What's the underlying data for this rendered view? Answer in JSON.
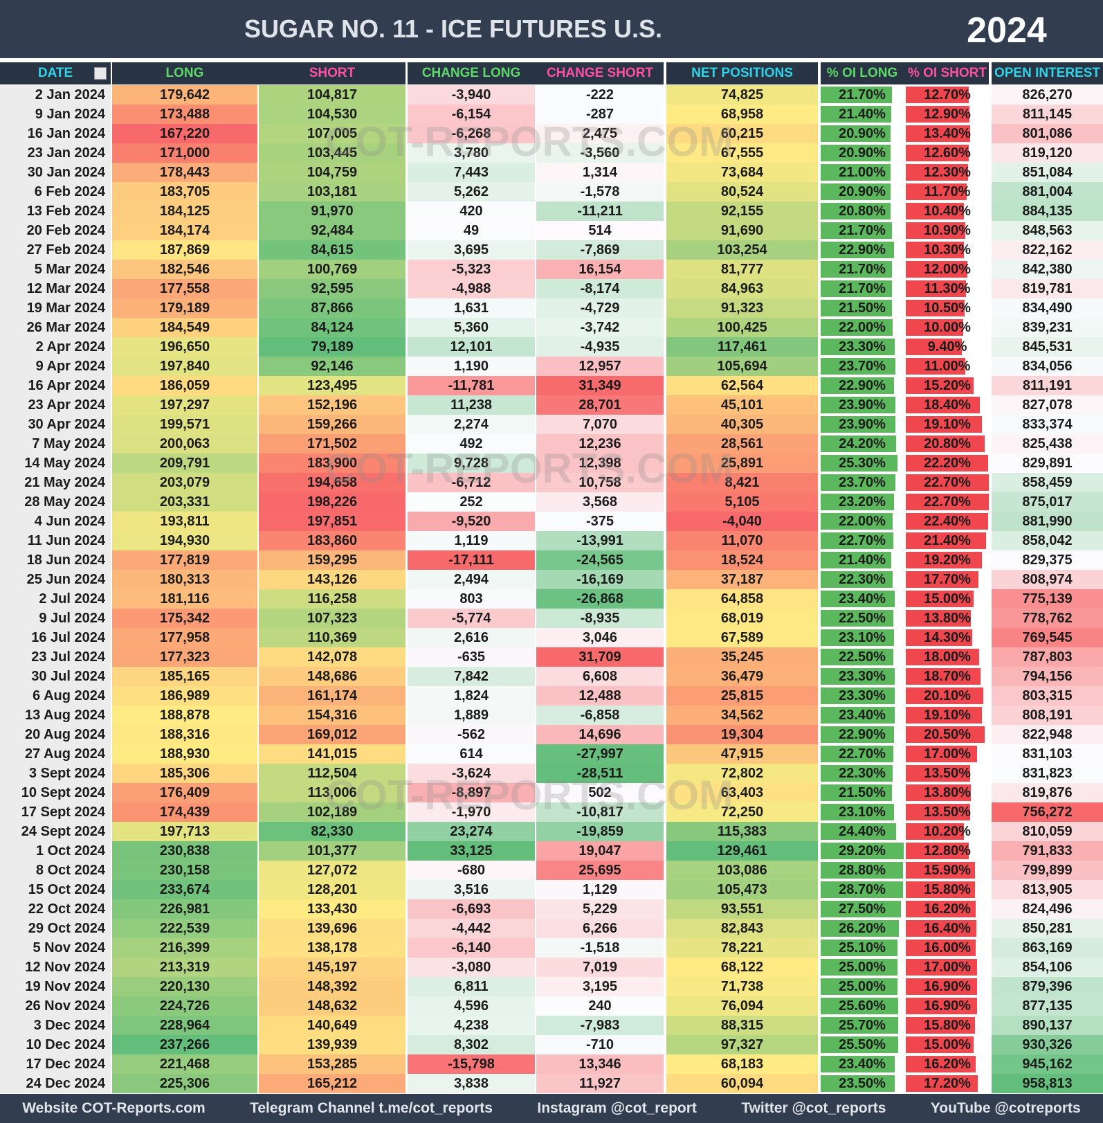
{
  "header": {
    "title": "SUGAR NO. 11 - ICE FUTURES U.S.",
    "year": "2024"
  },
  "table": {
    "columns": [
      "DATE",
      "LONG",
      "SHORT",
      "CHANGE LONG",
      "CHANGE SHORT",
      "NET POSITIONS",
      "% OI LONG",
      "% OI SHORT",
      "OPEN INTEREST"
    ],
    "rows": [
      [
        "2 Jan 2024",
        "179,642",
        "104,817",
        "-3,940",
        "-222",
        "74,825",
        "21.70%",
        "12.70%",
        "826,270"
      ],
      [
        "9 Jan 2024",
        "173,488",
        "104,530",
        "-6,154",
        "-287",
        "68,958",
        "21.40%",
        "12.90%",
        "811,145"
      ],
      [
        "16 Jan 2024",
        "167,220",
        "107,005",
        "-6,268",
        "2,475",
        "60,215",
        "20.90%",
        "13.40%",
        "801,086"
      ],
      [
        "23 Jan 2024",
        "171,000",
        "103,445",
        "3,780",
        "-3,560",
        "67,555",
        "20.90%",
        "12.60%",
        "819,120"
      ],
      [
        "30 Jan 2024",
        "178,443",
        "104,759",
        "7,443",
        "1,314",
        "73,684",
        "21.00%",
        "12.30%",
        "851,084"
      ],
      [
        "6 Feb 2024",
        "183,705",
        "103,181",
        "5,262",
        "-1,578",
        "80,524",
        "20.90%",
        "11.70%",
        "881,004"
      ],
      [
        "13 Feb 2024",
        "184,125",
        "91,970",
        "420",
        "-11,211",
        "92,155",
        "20.80%",
        "10.40%",
        "884,135"
      ],
      [
        "20 Feb 2024",
        "184,174",
        "92,484",
        "49",
        "514",
        "91,690",
        "21.70%",
        "10.90%",
        "848,563"
      ],
      [
        "27 Feb 2024",
        "187,869",
        "84,615",
        "3,695",
        "-7,869",
        "103,254",
        "22.90%",
        "10.30%",
        "822,162"
      ],
      [
        "5 Mar 2024",
        "182,546",
        "100,769",
        "-5,323",
        "16,154",
        "81,777",
        "21.70%",
        "12.00%",
        "842,380"
      ],
      [
        "12 Mar 2024",
        "177,558",
        "92,595",
        "-4,988",
        "-8,174",
        "84,963",
        "21.70%",
        "11.30%",
        "819,781"
      ],
      [
        "19 Mar 2024",
        "179,189",
        "87,866",
        "1,631",
        "-4,729",
        "91,323",
        "21.50%",
        "10.50%",
        "834,490"
      ],
      [
        "26 Mar 2024",
        "184,549",
        "84,124",
        "5,360",
        "-3,742",
        "100,425",
        "22.00%",
        "10.00%",
        "839,231"
      ],
      [
        "2 Apr 2024",
        "196,650",
        "79,189",
        "12,101",
        "-4,935",
        "117,461",
        "23.30%",
        "9.40%",
        "845,531"
      ],
      [
        "9 Apr 2024",
        "197,840",
        "92,146",
        "1,190",
        "12,957",
        "105,694",
        "23.70%",
        "11.00%",
        "834,056"
      ],
      [
        "16 Apr 2024",
        "186,059",
        "123,495",
        "-11,781",
        "31,349",
        "62,564",
        "22.90%",
        "15.20%",
        "811,191"
      ],
      [
        "23 Apr 2024",
        "197,297",
        "152,196",
        "11,238",
        "28,701",
        "45,101",
        "23.90%",
        "18.40%",
        "827,078"
      ],
      [
        "30 Apr 2024",
        "199,571",
        "159,266",
        "2,274",
        "7,070",
        "40,305",
        "23.90%",
        "19.10%",
        "833,374"
      ],
      [
        "7 May 2024",
        "200,063",
        "171,502",
        "492",
        "12,236",
        "28,561",
        "24.20%",
        "20.80%",
        "825,438"
      ],
      [
        "14 May 2024",
        "209,791",
        "183,900",
        "9,728",
        "12,398",
        "25,891",
        "25.30%",
        "22.20%",
        "829,891"
      ],
      [
        "21 May 2024",
        "203,079",
        "194,658",
        "-6,712",
        "10,758",
        "8,421",
        "23.70%",
        "22.70%",
        "858,459"
      ],
      [
        "28 May 2024",
        "203,331",
        "198,226",
        "252",
        "3,568",
        "5,105",
        "23.20%",
        "22.70%",
        "875,017"
      ],
      [
        "4 Jun 2024",
        "193,811",
        "197,851",
        "-9,520",
        "-375",
        "-4,040",
        "22.00%",
        "22.40%",
        "881,990"
      ],
      [
        "11 Jun 2024",
        "194,930",
        "183,860",
        "1,119",
        "-13,991",
        "11,070",
        "22.70%",
        "21.40%",
        "858,042"
      ],
      [
        "18 Jun 2024",
        "177,819",
        "159,295",
        "-17,111",
        "-24,565",
        "18,524",
        "21.40%",
        "19.20%",
        "829,375"
      ],
      [
        "25 Jun 2024",
        "180,313",
        "143,126",
        "2,494",
        "-16,169",
        "37,187",
        "22.30%",
        "17.70%",
        "808,974"
      ],
      [
        "2 Jul 2024",
        "181,116",
        "116,258",
        "803",
        "-26,868",
        "64,858",
        "23.40%",
        "15.00%",
        "775,139"
      ],
      [
        "9 Jul 2024",
        "175,342",
        "107,323",
        "-5,774",
        "-8,935",
        "68,019",
        "22.50%",
        "13.80%",
        "778,762"
      ],
      [
        "16 Jul 2024",
        "177,958",
        "110,369",
        "2,616",
        "3,046",
        "67,589",
        "23.10%",
        "14.30%",
        "769,545"
      ],
      [
        "23 Jul 2024",
        "177,323",
        "142,078",
        "-635",
        "31,709",
        "35,245",
        "22.50%",
        "18.00%",
        "787,803"
      ],
      [
        "30 Jul 2024",
        "185,165",
        "148,686",
        "7,842",
        "6,608",
        "36,479",
        "23.30%",
        "18.70%",
        "794,156"
      ],
      [
        "6 Aug 2024",
        "186,989",
        "161,174",
        "1,824",
        "12,488",
        "25,815",
        "23.30%",
        "20.10%",
        "803,315"
      ],
      [
        "13 Aug 2024",
        "188,878",
        "154,316",
        "1,889",
        "-6,858",
        "34,562",
        "23.40%",
        "19.10%",
        "808,191"
      ],
      [
        "20 Aug 2024",
        "188,316",
        "169,012",
        "-562",
        "14,696",
        "19,304",
        "22.90%",
        "20.50%",
        "822,948"
      ],
      [
        "27 Aug 2024",
        "188,930",
        "141,015",
        "614",
        "-27,997",
        "47,915",
        "22.70%",
        "17.00%",
        "831,103"
      ],
      [
        "3 Sept 2024",
        "185,306",
        "112,504",
        "-3,624",
        "-28,511",
        "72,802",
        "22.30%",
        "13.50%",
        "831,823"
      ],
      [
        "10 Sept 2024",
        "176,409",
        "113,006",
        "-8,897",
        "502",
        "63,403",
        "21.50%",
        "13.80%",
        "819,876"
      ],
      [
        "17 Sept 2024",
        "174,439",
        "102,189",
        "-1,970",
        "-10,817",
        "72,250",
        "23.10%",
        "13.50%",
        "756,272"
      ],
      [
        "24 Sept 2024",
        "197,713",
        "82,330",
        "23,274",
        "-19,859",
        "115,383",
        "24.40%",
        "10.20%",
        "810,059"
      ],
      [
        "1 Oct 2024",
        "230,838",
        "101,377",
        "33,125",
        "19,047",
        "129,461",
        "29.20%",
        "12.80%",
        "791,833"
      ],
      [
        "8 Oct 2024",
        "230,158",
        "127,072",
        "-680",
        "25,695",
        "103,086",
        "28.80%",
        "15.90%",
        "799,899"
      ],
      [
        "15 Oct 2024",
        "233,674",
        "128,201",
        "3,516",
        "1,129",
        "105,473",
        "28.70%",
        "15.80%",
        "813,905"
      ],
      [
        "22 Oct 2024",
        "226,981",
        "133,430",
        "-6,693",
        "5,229",
        "93,551",
        "27.50%",
        "16.20%",
        "824,496"
      ],
      [
        "29 Oct 2024",
        "222,539",
        "139,696",
        "-4,442",
        "6,266",
        "82,843",
        "26.20%",
        "16.40%",
        "850,281"
      ],
      [
        "5 Nov 2024",
        "216,399",
        "138,178",
        "-6,140",
        "-1,518",
        "78,221",
        "25.10%",
        "16.00%",
        "863,169"
      ],
      [
        "12 Nov 2024",
        "213,319",
        "145,197",
        "-3,080",
        "7,019",
        "68,122",
        "25.00%",
        "17.00%",
        "854,106"
      ],
      [
        "19 Nov 2024",
        "220,130",
        "148,392",
        "6,811",
        "3,195",
        "71,738",
        "25.00%",
        "16.90%",
        "879,396"
      ],
      [
        "26 Nov 2024",
        "224,726",
        "148,632",
        "4,596",
        "240",
        "76,094",
        "25.60%",
        "16.90%",
        "877,135"
      ],
      [
        "3 Dec 2024",
        "228,964",
        "140,649",
        "4,238",
        "-7,983",
        "88,315",
        "25.70%",
        "15.80%",
        "890,137"
      ],
      [
        "10 Dec 2024",
        "237,266",
        "139,939",
        "8,302",
        "-710",
        "97,327",
        "25.50%",
        "15.00%",
        "930,326"
      ],
      [
        "17 Dec 2024",
        "221,468",
        "153,285",
        "-15,798",
        "13,346",
        "68,183",
        "23.40%",
        "16.20%",
        "945,162"
      ],
      [
        "24 Dec 2024",
        "225,306",
        "165,212",
        "3,838",
        "11,927",
        "60,094",
        "23.50%",
        "17.20%",
        "958,813"
      ]
    ]
  },
  "watermark": "COT-REPORTS.COM",
  "footer": [
    "Website COT-Reports.com",
    "Telegram Channel t.me/cot_reports",
    "Instagram @cot_report",
    "Twitter @cot_reports",
    "YouTube @cotreports"
  ]
}
